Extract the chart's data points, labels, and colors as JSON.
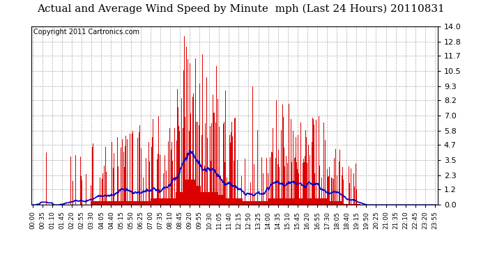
{
  "title": "Actual and Average Wind Speed by Minute  mph (Last 24 Hours) 20110831",
  "copyright_text": "Copyright 2011 Cartronics.com",
  "yticks": [
    0.0,
    1.2,
    2.3,
    3.5,
    4.7,
    5.8,
    7.0,
    8.2,
    9.3,
    10.5,
    11.7,
    12.8,
    14.0
  ],
  "ylim": [
    0.0,
    14.0
  ],
  "bar_color": "#DD0000",
  "line_color": "#0000CC",
  "background_color": "#FFFFFF",
  "plot_bg_color": "#FFFFFF",
  "grid_color": "#AAAAAA",
  "title_fontsize": 11,
  "copyright_fontsize": 7,
  "n_minutes": 1440,
  "xtick_interval": 35,
  "xtick_labels": [
    "00:00",
    "00:35",
    "01:10",
    "01:45",
    "02:20",
    "02:55",
    "03:30",
    "04:05",
    "04:40",
    "05:15",
    "05:50",
    "06:25",
    "07:00",
    "07:35",
    "08:10",
    "08:45",
    "09:20",
    "09:55",
    "10:30",
    "11:05",
    "11:40",
    "12:15",
    "12:50",
    "13:25",
    "14:00",
    "14:35",
    "15:10",
    "15:45",
    "16:20",
    "16:55",
    "17:30",
    "18:05",
    "18:40",
    "19:15",
    "19:50",
    "20:25",
    "21:00",
    "21:35",
    "22:10",
    "22:45",
    "23:20",
    "23:55"
  ]
}
